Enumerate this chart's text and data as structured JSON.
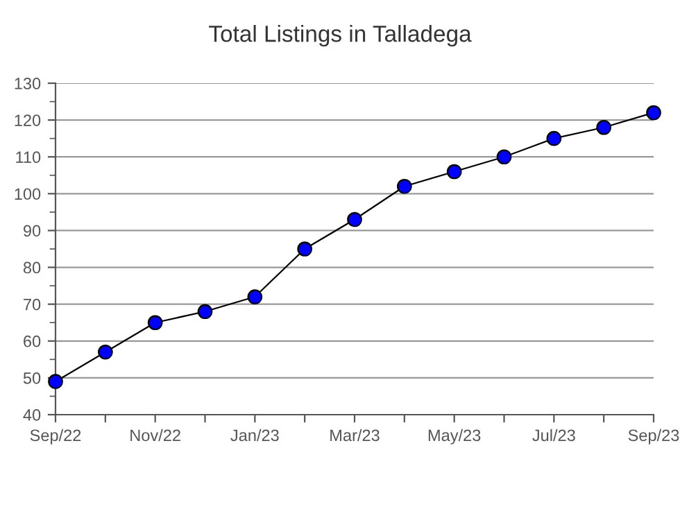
{
  "chart_data": {
    "type": "line",
    "title": "Total Listings in Talladega",
    "categories": [
      "Sep/22",
      null,
      "Nov/22",
      null,
      "Jan/23",
      null,
      "Mar/23",
      null,
      "May/23",
      null,
      "Jul/23",
      null,
      "Sep/23"
    ],
    "series": [
      {
        "color": "#0000ff",
        "values": [
          49,
          57,
          65,
          68,
          72,
          85,
          93,
          102,
          106,
          110,
          115,
          118,
          122
        ]
      }
    ],
    "ylim": [
      40,
      130
    ],
    "yticks": [
      40,
      {
        "value": 45,
        "label": null
      },
      50,
      {
        "value": 55,
        "label": null
      },
      60,
      {
        "value": 65,
        "label": null
      },
      70,
      {
        "value": 75,
        "label": null
      },
      80,
      {
        "value": 85,
        "label": null
      },
      90,
      {
        "value": 95,
        "label": null
      },
      100,
      {
        "value": 105,
        "label": null
      },
      110,
      {
        "value": 115,
        "label": null
      },
      120,
      {
        "value": 125,
        "label": null
      },
      130
    ],
    "grid": "y",
    "marker": "circle",
    "line_style": "solid"
  }
}
